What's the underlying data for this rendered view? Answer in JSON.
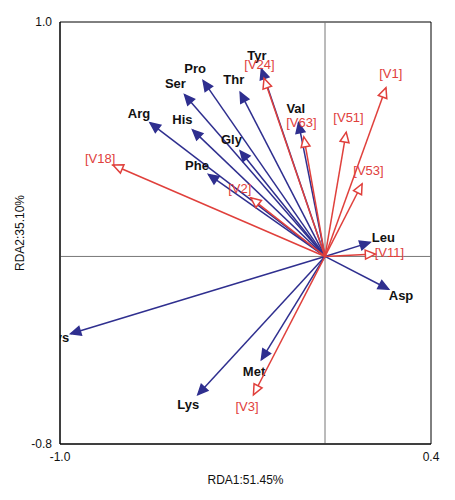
{
  "chart_data": {
    "type": "biplot",
    "x_label": "RDA1:51.45%",
    "y_label": "RDA2:35.10%",
    "xlim": [
      -1.0,
      0.4
    ],
    "ylim": [
      -0.8,
      1.0
    ],
    "xticks": [
      {
        "value": -1.0,
        "label": "-1.0"
      },
      0.4
    ],
    "yticks": [
      -0.8,
      {
        "value": 1.0,
        "label": "1.0"
      }
    ],
    "series": [
      {
        "color": "#2f2f8f",
        "marker": "filled",
        "points": [
          {
            "label": "Pro",
            "x": -0.46,
            "y": 0.75
          },
          {
            "label": "Ser",
            "x": -0.53,
            "y": 0.69
          },
          {
            "label": "Thr",
            "x": -0.32,
            "y": 0.7
          },
          {
            "label": "Tyr",
            "x": -0.24,
            "y": 0.8
          },
          {
            "label": "Arg",
            "x": -0.66,
            "y": 0.57
          },
          {
            "label": "His",
            "x": -0.5,
            "y": 0.54
          },
          {
            "label": "Gly",
            "x": -0.32,
            "y": 0.45
          },
          {
            "label": "Phe",
            "x": -0.44,
            "y": 0.35
          },
          {
            "label": "Val",
            "x": -0.1,
            "y": 0.57
          },
          {
            "label": "Leu",
            "x": 0.17,
            "y": 0.06
          },
          {
            "label": "Asp",
            "x": 0.24,
            "y": -0.14
          },
          {
            "label": "Cys",
            "x": -0.96,
            "y": -0.33
          },
          {
            "label": "Met",
            "x": -0.24,
            "y": -0.44
          },
          {
            "label": "Lys",
            "x": -0.48,
            "y": -0.59
          }
        ]
      },
      {
        "color": "#e0403c",
        "marker": "open",
        "points": [
          {
            "label": "[V1]",
            "x": 0.23,
            "y": 0.72
          },
          {
            "label": "[V24]",
            "x": -0.23,
            "y": 0.76
          },
          {
            "label": "[V18]",
            "x": -0.8,
            "y": 0.39
          },
          {
            "label": "[V63]",
            "x": -0.08,
            "y": 0.51
          },
          {
            "label": "[V51]",
            "x": 0.08,
            "y": 0.53
          },
          {
            "label": "[V53]",
            "x": 0.14,
            "y": 0.31
          },
          {
            "label": "[V11]",
            "x": 0.19,
            "y": 0.01
          },
          {
            "label": "[V2]",
            "x": -0.28,
            "y": 0.25
          },
          {
            "label": "[V3]",
            "x": -0.27,
            "y": -0.59
          }
        ]
      }
    ]
  }
}
